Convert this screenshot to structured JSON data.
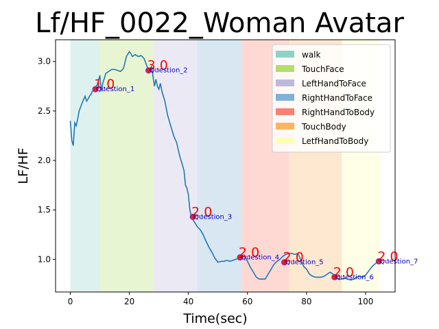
{
  "chart_data": {
    "type": "line",
    "title": "Lf/HF_0022_Woman Avatar",
    "xlabel": "Time(sec)",
    "ylabel": "LF/HF",
    "xlim": [
      -5,
      110
    ],
    "ylim": [
      0.67,
      3.22
    ],
    "xticks": [
      0,
      20,
      40,
      60,
      80,
      100
    ],
    "yticks": [
      1.0,
      1.5,
      2.0,
      2.5,
      3.0
    ],
    "xtick_labels": [
      "0",
      "20",
      "40",
      "60",
      "80",
      "100"
    ],
    "ytick_labels": [
      "1.0",
      "1.5",
      "2.0",
      "2.5",
      "3.0"
    ],
    "grid": false,
    "legend_position": "top-right",
    "line_color": "#1f77b4",
    "series": [
      {
        "x": [
          0,
          0.5,
          1,
          1.5,
          2,
          2.5,
          3,
          4,
          5,
          5.5,
          6,
          6.5,
          7,
          7.5,
          8,
          8.5,
          9,
          9.5,
          10,
          10.5,
          11,
          12,
          13,
          14,
          15,
          16,
          17,
          18,
          19,
          20,
          20.5,
          21,
          22,
          23,
          24,
          25,
          26,
          26.5,
          27,
          27.5,
          28,
          28.5,
          29,
          29.5,
          30,
          30.5,
          31,
          32,
          33,
          34,
          35,
          36,
          37,
          38,
          38.5,
          39,
          39.5,
          40,
          40.5,
          41,
          41.5,
          42,
          43,
          44,
          45,
          46,
          47,
          48,
          49,
          50,
          51,
          52,
          53,
          54,
          55,
          56,
          57,
          58,
          59,
          60,
          61,
          62,
          63,
          64,
          65,
          66,
          67,
          68,
          69,
          70,
          71,
          72,
          73,
          74,
          75,
          76,
          77,
          78,
          79,
          80,
          81,
          82,
          83,
          84,
          85,
          86,
          87,
          88,
          89,
          90,
          91,
          92,
          93,
          94,
          95,
          96,
          97,
          98,
          99,
          100,
          101,
          102,
          103,
          104,
          104.5
        ],
        "y": [
          2.4,
          2.2,
          2.15,
          2.38,
          2.35,
          2.42,
          2.5,
          2.58,
          2.65,
          2.6,
          2.62,
          2.65,
          2.67,
          2.7,
          2.72,
          2.74,
          2.76,
          2.8,
          2.86,
          2.7,
          2.78,
          2.88,
          2.9,
          2.92,
          2.92,
          2.91,
          2.9,
          2.93,
          3.05,
          3.1,
          3.08,
          3.05,
          3.07,
          3.05,
          3.06,
          3.03,
          2.95,
          2.9,
          2.92,
          2.95,
          2.85,
          2.75,
          2.82,
          2.75,
          2.72,
          2.78,
          2.7,
          2.6,
          2.45,
          2.35,
          2.25,
          2.18,
          2.05,
          1.95,
          1.9,
          1.75,
          1.72,
          1.65,
          1.5,
          1.43,
          1.4,
          1.38,
          1.33,
          1.3,
          1.25,
          1.18,
          1.12,
          1.07,
          1.01,
          0.97,
          0.98,
          0.98,
          0.99,
          0.98,
          0.99,
          1.0,
          1.01,
          1.02,
          1.03,
          0.98,
          0.92,
          0.87,
          0.82,
          0.8,
          0.8,
          0.8,
          0.85,
          0.9,
          0.95,
          0.98,
          1.0,
          1.03,
          1.05,
          1.06,
          1.06,
          1.05,
          1.06,
          1.0,
          0.93,
          0.9,
          0.85,
          0.83,
          0.82,
          0.82,
          0.82,
          0.83,
          0.85,
          0.87,
          0.85,
          0.82,
          0.8,
          0.8,
          0.81,
          0.8,
          0.79,
          0.8,
          0.82,
          0.83,
          0.82,
          0.84,
          0.88,
          0.92,
          0.95,
          0.97,
          0.98
        ]
      }
    ],
    "spans": [
      {
        "name": "walk",
        "start": 0,
        "end": 10,
        "color": "#8dd3c7"
      },
      {
        "name": "TouchFace",
        "start": 10,
        "end": 28,
        "color": "#b3de69"
      },
      {
        "name": "LeftHandToFace",
        "start": 28,
        "end": 43,
        "color": "#bebada"
      },
      {
        "name": "RightHandToFace",
        "start": 43,
        "end": 58,
        "color": "#80b1d3"
      },
      {
        "name": "RightHandToBody",
        "start": 58,
        "end": 74,
        "color": "#fb8072"
      },
      {
        "name": "TouchBody",
        "start": 74,
        "end": 92,
        "color": "#fdb462"
      },
      {
        "name": "LetfHandToBody",
        "start": 92,
        "end": 105,
        "color": "#ffffb3"
      }
    ],
    "markers": [
      {
        "x": 8.5,
        "y": 2.72,
        "score": "1.0",
        "label": "Question_1"
      },
      {
        "x": 26.5,
        "y": 2.91,
        "score": "3.0",
        "label": "Question_2"
      },
      {
        "x": 41.5,
        "y": 1.43,
        "score": "2.0",
        "label": "Question_3"
      },
      {
        "x": 57.5,
        "y": 1.02,
        "score": "2.0",
        "label": "Question_4"
      },
      {
        "x": 72.5,
        "y": 0.97,
        "score": "2.0",
        "label": "Question_5"
      },
      {
        "x": 89.5,
        "y": 0.82,
        "score": "2.0",
        "label": "Question_6"
      },
      {
        "x": 104.5,
        "y": 0.98,
        "score": "2.0",
        "label": "Question_7"
      }
    ]
  }
}
